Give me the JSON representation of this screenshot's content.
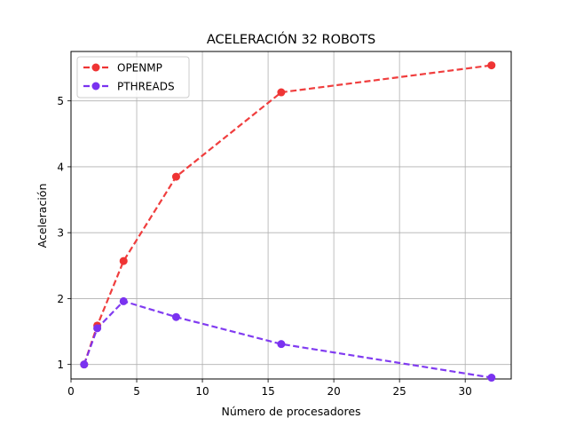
{
  "chart_data": {
    "type": "line",
    "title": "ACELERACIÓN 32 ROBOTS",
    "xlabel": "Número de procesadores",
    "ylabel": "Aceleración",
    "xlim": [
      0,
      33.5
    ],
    "ylim": [
      0.78,
      5.75
    ],
    "xticks": [
      0,
      5,
      10,
      15,
      20,
      25,
      30
    ],
    "yticks": [
      1,
      2,
      3,
      4,
      5
    ],
    "grid": true,
    "legend_position": "top-left",
    "x": [
      1,
      2,
      4,
      8,
      16,
      32
    ],
    "series": [
      {
        "name": "OPENMP",
        "color": "#ef3434",
        "values": [
          1.0,
          1.59,
          2.57,
          3.85,
          5.13,
          5.54
        ]
      },
      {
        "name": "PTHREADS",
        "color": "#7a32f0",
        "values": [
          1.0,
          1.55,
          1.96,
          1.72,
          1.31,
          0.8
        ]
      }
    ]
  }
}
